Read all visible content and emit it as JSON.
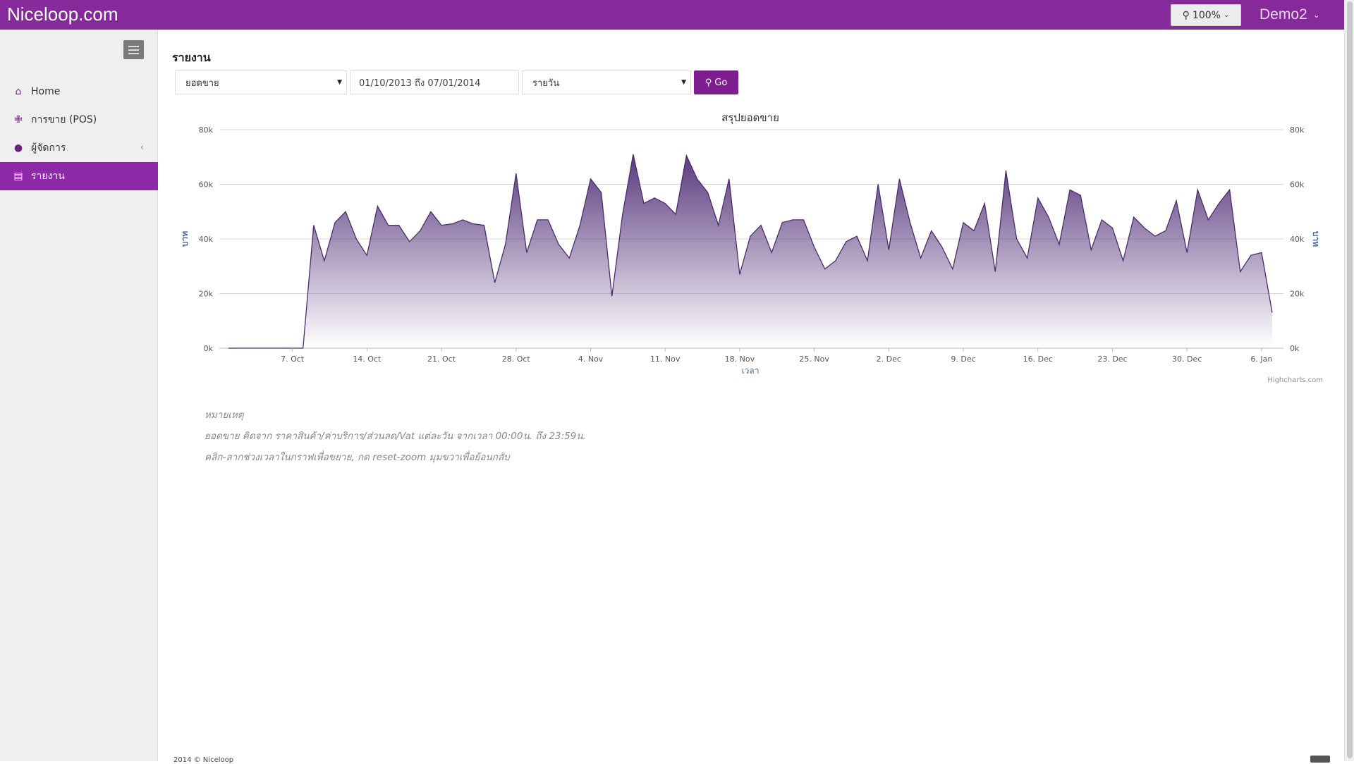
{
  "header": {
    "brand": "Niceloop.com",
    "zoom_label": "100%",
    "user": "Demo2"
  },
  "sidebar": {
    "items": [
      {
        "label": "Home",
        "icon": "home-icon"
      },
      {
        "label": "การขาย (POS)",
        "icon": "cutlery-icon"
      },
      {
        "label": "ผู้จัดการ",
        "icon": "user-icon"
      },
      {
        "label": "รายงาน",
        "icon": "bar-chart-icon",
        "active": true
      }
    ]
  },
  "main": {
    "title": "รายงาน",
    "filters": {
      "report_type": "ยอดขาย",
      "date_range": "01/10/2013 ถึง 07/01/2014",
      "period": "รายวัน",
      "go_label": "Go"
    },
    "notes": {
      "heading": "หมายเหตุ",
      "line1": "ยอดขาย คิดจาก ราคาสินค้า/ค่าบริการ/ส่วนลด/Vat แต่ละวัน จากเวลา 00:00น. ถึง 23:59น.",
      "line2": "คลิก-ลากช่วงเวลาในกราฟเพื่อขยาย, กด reset-zoom มุมขวาเพื่อย้อนกลับ"
    },
    "footer": "2014 © Niceloop"
  },
  "colors": {
    "brand": "#86299b",
    "active_nav": "#8e2aaa",
    "go_button": "#7e1d8f",
    "series_line": "#4b2b6b",
    "series_fill_top": "#5b3a7e"
  },
  "chart_data": {
    "type": "area",
    "title": "สรุปยอดขาย",
    "xlabel": "เวลา",
    "ylabel": "บาท",
    "ylabel_right": "บาท",
    "credits": "Highcharts.com",
    "ylim": [
      0,
      80000
    ],
    "yticks": [
      "0k",
      "20k",
      "40k",
      "60k",
      "80k"
    ],
    "xticks": [
      "7. Oct",
      "14. Oct",
      "21. Oct",
      "28. Oct",
      "4. Nov",
      "11. Nov",
      "18. Nov",
      "25. Nov",
      "2. Dec",
      "9. Dec",
      "16. Dec",
      "23. Dec",
      "30. Dec",
      "6. Jan"
    ],
    "x_start": "2013-10-01",
    "x_end": "2014-01-07",
    "grid": true,
    "series": [
      {
        "values": [
          0,
          0,
          0,
          0,
          0,
          0,
          0,
          0,
          45000,
          32000,
          46000,
          50000,
          40000,
          34000,
          52000,
          45000,
          45000,
          39000,
          43000,
          50000,
          45000,
          45500,
          47000,
          45500,
          45000,
          24000,
          38000,
          64000,
          35000,
          47000,
          47000,
          38000,
          33000,
          45000,
          62000,
          57000,
          19000,
          49000,
          71000,
          53000,
          55000,
          53000,
          49000,
          70500,
          62000,
          57000,
          45000,
          62000,
          27000,
          41000,
          45000,
          35000,
          46000,
          47000,
          47000,
          37000,
          29000,
          32000,
          39000,
          41000,
          32000,
          60000,
          36000,
          62000,
          46000,
          33000,
          43000,
          37000,
          29000,
          46000,
          43000,
          53000,
          28000,
          65000,
          40000,
          33000,
          55000,
          48000,
          38000,
          58000,
          56000,
          36000,
          47000,
          44000,
          32000,
          48000,
          44000,
          41000,
          43000,
          54000,
          35000,
          58000,
          47000,
          53000,
          58000,
          28000,
          34000,
          35000,
          13000
        ]
      }
    ]
  }
}
